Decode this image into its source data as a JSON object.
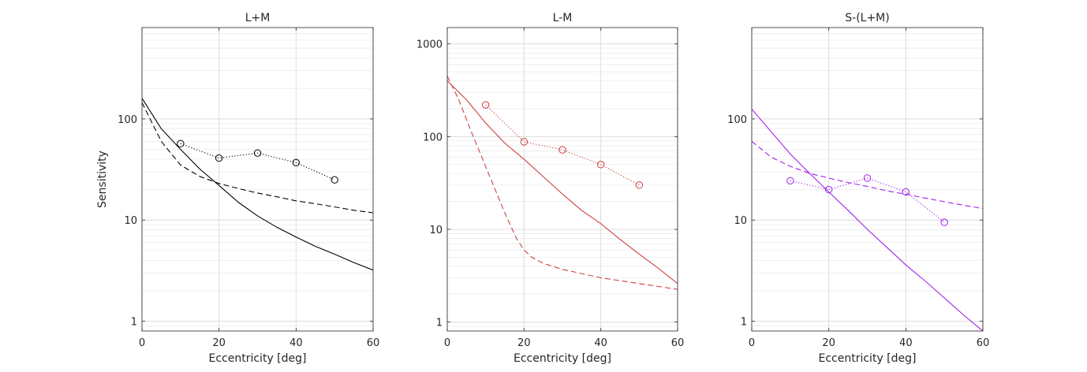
{
  "chart_data": [
    {
      "type": "line",
      "title": "L+M",
      "xlabel": "Eccentricity [deg]",
      "ylabel": "Sensitivity",
      "xlim": [
        0,
        60
      ],
      "ylim": [
        0.8,
        800
      ],
      "yscale": "log",
      "grid": true,
      "color": "#000000",
      "xticks": [
        0,
        20,
        40,
        60
      ],
      "yticks": [
        1,
        10,
        100
      ],
      "yticklabels": [
        "1",
        "10",
        "100"
      ],
      "series": [
        {
          "style": "solid",
          "x": [
            0,
            5,
            10,
            15,
            20,
            25,
            30,
            35,
            40,
            45,
            50,
            55,
            60
          ],
          "values": [
            160,
            80,
            50,
            32,
            22,
            15,
            11,
            8.5,
            6.8,
            5.5,
            4.6,
            3.8,
            3.2
          ]
        },
        {
          "style": "dashed",
          "x": [
            0,
            5,
            10,
            15,
            20,
            25,
            30,
            35,
            40,
            45,
            50,
            55,
            60
          ],
          "values": [
            145,
            60,
            35,
            27,
            23,
            20.5,
            18.5,
            17,
            15.5,
            14.5,
            13.5,
            12.5,
            11.8
          ]
        },
        {
          "style": "dotted-markers",
          "x": [
            10,
            20,
            30,
            40,
            50
          ],
          "values": [
            57,
            41,
            46,
            37,
            25
          ]
        }
      ]
    },
    {
      "type": "line",
      "title": "L-M",
      "xlabel": "Eccentricity [deg]",
      "ylabel": "",
      "xlim": [
        0,
        60
      ],
      "ylim": [
        0.8,
        1500
      ],
      "yscale": "log",
      "grid": true,
      "color": "#d03f3f",
      "xticks": [
        0,
        20,
        40,
        60
      ],
      "yticks": [
        1,
        10,
        100,
        1000
      ],
      "yticklabels": [
        "1",
        "10",
        "100",
        "1000"
      ],
      "series": [
        {
          "style": "solid",
          "x": [
            0,
            5,
            10,
            15,
            20,
            25,
            30,
            35,
            40,
            45,
            50,
            55,
            60
          ],
          "values": [
            400,
            250,
            140,
            85,
            57,
            37,
            24,
            16,
            11.5,
            7.8,
            5.4,
            3.8,
            2.6
          ]
        },
        {
          "style": "dashed",
          "x": [
            0,
            3,
            6,
            9,
            12,
            15,
            18,
            20,
            22,
            25,
            30,
            40,
            50,
            60
          ],
          "values": [
            450,
            250,
            120,
            60,
            30,
            15,
            8,
            6,
            5,
            4.3,
            3.7,
            3.0,
            2.6,
            2.25
          ]
        },
        {
          "style": "dotted-markers",
          "x": [
            10,
            20,
            30,
            40,
            50
          ],
          "values": [
            220,
            88,
            72,
            50,
            30
          ]
        }
      ]
    },
    {
      "type": "line",
      "title": "S-(L+M)",
      "xlabel": "Eccentricity [deg]",
      "ylabel": "",
      "xlim": [
        0,
        60
      ],
      "ylim": [
        0.8,
        800
      ],
      "yscale": "log",
      "grid": true,
      "color": "#a020f0",
      "xticks": [
        0,
        20,
        40,
        60
      ],
      "yticks": [
        1,
        10,
        100
      ],
      "yticklabels": [
        "1",
        "10",
        "100"
      ],
      "series": [
        {
          "style": "solid",
          "x": [
            0,
            5,
            10,
            15,
            20,
            25,
            30,
            35,
            40,
            45,
            50,
            55,
            60
          ],
          "values": [
            125,
            75,
            45,
            29,
            19,
            12.5,
            8.1,
            5.4,
            3.6,
            2.5,
            1.7,
            1.15,
            0.8
          ]
        },
        {
          "style": "dashed",
          "x": [
            0,
            5,
            10,
            15,
            20,
            25,
            30,
            35,
            40,
            45,
            50,
            55,
            60
          ],
          "values": [
            60,
            42,
            34,
            29,
            26,
            23.5,
            21.5,
            19.5,
            18,
            16.5,
            15.2,
            14,
            13
          ]
        },
        {
          "style": "dotted-markers",
          "x": [
            10,
            20,
            30,
            40,
            50
          ],
          "values": [
            24.5,
            20,
            26,
            19,
            9.5
          ]
        }
      ]
    }
  ]
}
